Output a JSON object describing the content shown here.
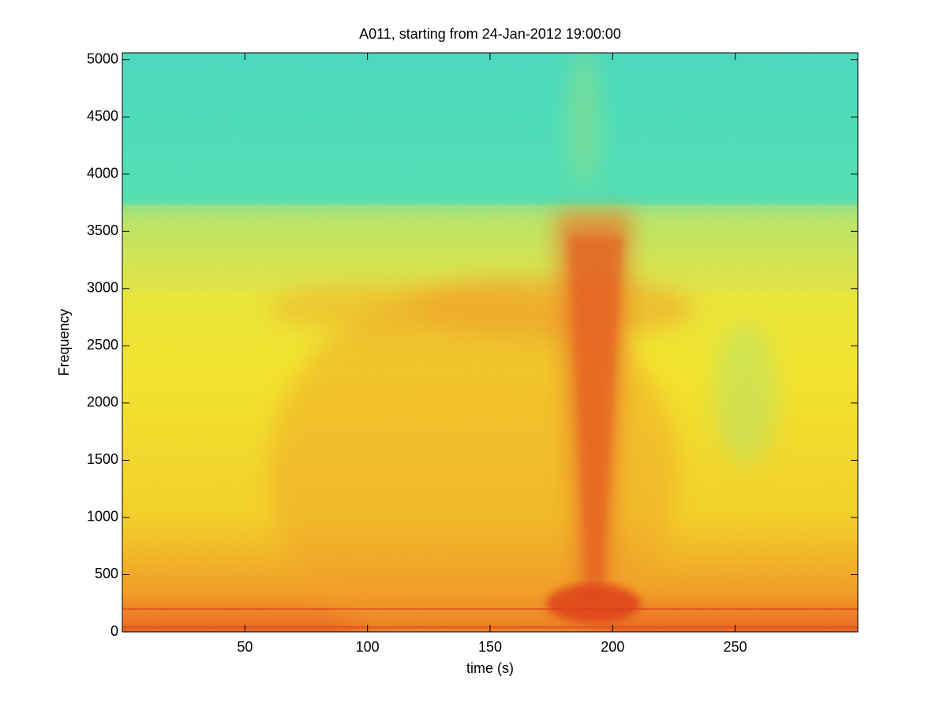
{
  "chart_data": {
    "type": "spectrogram",
    "title": "A011, starting from 24-Jan-2012 19:00:00",
    "x_label": "time (s)",
    "y_label": "Frequency",
    "xlim": [
      0,
      300
    ],
    "ylim": [
      0,
      5060
    ],
    "xticks": [
      50,
      100,
      150,
      200,
      250
    ],
    "yticks": [
      0,
      500,
      1000,
      1500,
      2000,
      2500,
      3000,
      3500,
      4000,
      4500,
      5000
    ]
  }
}
